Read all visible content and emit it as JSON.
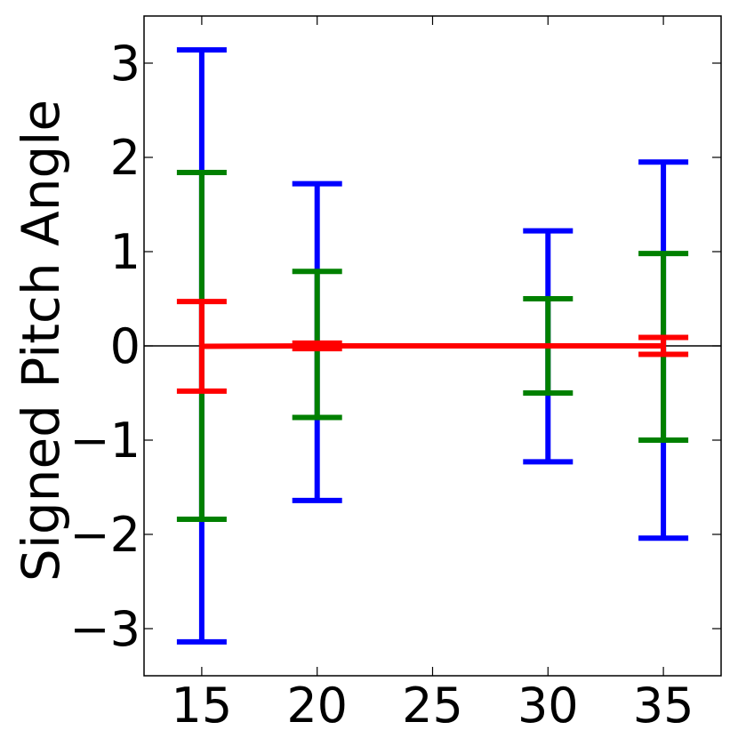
{
  "chart_data": {
    "type": "errorbar",
    "ylabel": "Signed Pitch Angle",
    "xlabel": "",
    "xlim": [
      12.5,
      37.5
    ],
    "ylim": [
      -3.5,
      3.5
    ],
    "xticks": [
      15,
      20,
      25,
      30,
      35
    ],
    "xtick_labels": [
      "15",
      "20",
      "25",
      "30",
      "35"
    ],
    "yticks": [
      -3,
      -2,
      -1,
      0,
      1,
      2,
      3
    ],
    "ytick_labels": [
      "−3",
      "−2",
      "−1",
      "0",
      "1",
      "2",
      "3"
    ],
    "zero_line": 0,
    "grid": false,
    "legend": false,
    "series": [
      {
        "color": "#0000ff",
        "points": [
          {
            "x": 15,
            "low": -3.14,
            "high": 3.14
          },
          {
            "x": 20,
            "low": -1.64,
            "high": 1.72
          },
          {
            "x": 30,
            "low": -1.23,
            "high": 1.22
          },
          {
            "x": 35,
            "low": -2.04,
            "high": 1.95
          }
        ]
      },
      {
        "color": "#008000",
        "points": [
          {
            "x": 15,
            "low": -1.84,
            "high": 1.84
          },
          {
            "x": 20,
            "low": -0.76,
            "high": 0.79
          },
          {
            "x": 30,
            "low": -0.5,
            "high": 0.5
          },
          {
            "x": 35,
            "low": -1.0,
            "high": 0.98
          }
        ]
      },
      {
        "color": "#ff0000",
        "line": true,
        "points": [
          {
            "x": 15,
            "low": -0.48,
            "high": 0.47
          },
          {
            "x": 20,
            "low": -0.03,
            "high": 0.03
          },
          {
            "x": 30,
            "low": 0.0,
            "high": 0.0
          },
          {
            "x": 35,
            "low": -0.09,
            "high": 0.09
          }
        ]
      }
    ]
  }
}
